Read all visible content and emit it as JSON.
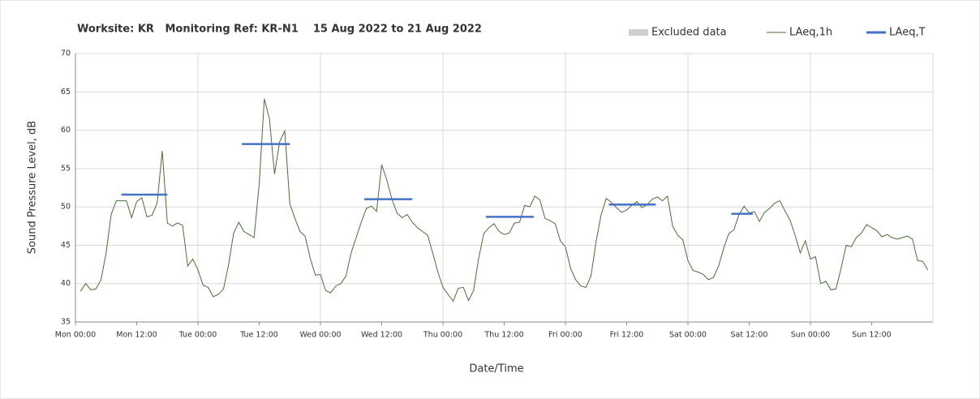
{
  "chart_data": {
    "type": "line",
    "title": "Worksite: KR   Monitoring Ref: KR-N1    15 Aug 2022 to 21 Aug 2022",
    "xlabel": "Date/Time",
    "ylabel": "Sound Pressure Level, dB",
    "xlim": [
      0,
      168
    ],
    "ylim": [
      35,
      70
    ],
    "yticks": [
      35,
      40,
      45,
      50,
      55,
      60,
      65,
      70
    ],
    "xticks": [
      {
        "value": 0,
        "label": "Mon 00:00"
      },
      {
        "value": 12,
        "label": "Mon 12:00"
      },
      {
        "value": 24,
        "label": "Tue 00:00"
      },
      {
        "value": 36,
        "label": "Tue 12:00"
      },
      {
        "value": 48,
        "label": "Wed 00:00"
      },
      {
        "value": 60,
        "label": "Wed 12:00"
      },
      {
        "value": 72,
        "label": "Thu 00:00"
      },
      {
        "value": 84,
        "label": "Thu 12:00"
      },
      {
        "value": 96,
        "label": "Fri 00:00"
      },
      {
        "value": 108,
        "label": "Fri 12:00"
      },
      {
        "value": 120,
        "label": "Sat 00:00"
      },
      {
        "value": 132,
        "label": "Sat 12:00"
      },
      {
        "value": 144,
        "label": "Sun 00:00"
      },
      {
        "value": 156,
        "label": "Sun 12:00"
      }
    ],
    "grid": true,
    "legend": [
      {
        "name": "Excluded data",
        "color": "#d0d0d0",
        "kind": "area"
      },
      {
        "name": "LAeq,1h",
        "color": "#4e6b3a",
        "kind": "line"
      },
      {
        "name": "LAeq,T",
        "color": "#4472c4",
        "kind": "segment"
      }
    ],
    "series": [
      {
        "name": "LAeq,1h",
        "color": "#4e6b3a",
        "x": [
          1,
          2,
          3,
          4,
          5,
          6,
          7,
          8,
          9,
          10,
          11,
          12,
          13,
          14,
          15,
          16,
          17,
          18,
          19,
          20,
          21,
          22,
          23,
          24,
          25,
          26,
          27,
          28,
          29,
          30,
          31,
          32,
          33,
          34,
          35,
          36,
          37,
          38,
          39,
          40,
          41,
          42,
          43,
          44,
          45,
          46,
          47,
          48,
          49,
          50,
          51,
          52,
          53,
          54,
          55,
          56,
          57,
          58,
          59,
          60,
          61,
          62,
          63,
          64,
          65,
          66,
          67,
          68,
          69,
          70,
          71,
          72,
          73,
          74,
          75,
          76,
          77,
          78,
          79,
          80,
          81,
          82,
          83,
          84,
          85,
          86,
          87,
          88,
          89,
          90,
          91,
          92,
          93,
          94,
          95,
          96,
          97,
          98,
          99,
          100,
          101,
          102,
          103,
          104,
          105,
          106,
          107,
          108,
          109,
          110,
          111,
          112,
          113,
          114,
          115,
          116,
          117,
          118,
          119,
          120,
          121,
          122,
          123,
          124,
          125,
          126,
          127,
          128,
          129,
          130,
          131,
          132,
          133,
          134,
          135,
          136,
          137,
          138,
          139,
          140,
          141,
          142,
          143,
          144,
          145,
          146,
          147,
          148,
          149,
          150,
          151,
          152,
          153,
          154,
          155,
          156,
          157,
          158,
          159,
          160,
          161,
          162,
          163,
          164,
          165,
          166,
          167
        ],
        "values": [
          39,
          40,
          39.2,
          39.3,
          40.5,
          44,
          49,
          50.8,
          50.8,
          50.8,
          48.6,
          50.7,
          51.2,
          48.7,
          48.9,
          50.5,
          57.3,
          47.9,
          47.5,
          47.9,
          47.6,
          42.3,
          43.2,
          41.8,
          39.8,
          39.5,
          38.3,
          38.6,
          39.3,
          42.5,
          46.6,
          48,
          46.8,
          46.4,
          46,
          53,
          64.1,
          61.5,
          54.3,
          58.5,
          59.9,
          50.4,
          48.5,
          46.8,
          46.2,
          43.3,
          41.1,
          41.2,
          39.1,
          38.8,
          39.7,
          40,
          41,
          44,
          46,
          48,
          49.8,
          50.1,
          49.4,
          55.5,
          53.5,
          51,
          49.2,
          48.6,
          49,
          48,
          47.3,
          46.8,
          46.3,
          44,
          41.5,
          39.5,
          38.6,
          37.7,
          39.4,
          39.5,
          37.8,
          39.1,
          43.3,
          46.5,
          47.3,
          47.8,
          46.8,
          46.4,
          46.6,
          47.9,
          48,
          50.2,
          50,
          51.4,
          50.9,
          48.5,
          48.2,
          47.8,
          45.6,
          44.8,
          42,
          40.5,
          39.7,
          39.5,
          41,
          45.5,
          49,
          51.1,
          50.6,
          49.9,
          49.3,
          49.6,
          50.2,
          50.7,
          49.9,
          50.3,
          51,
          51.3,
          50.8,
          51.4,
          47.5,
          46.3,
          45.7,
          43,
          41.7,
          41.5,
          41.2,
          40.5,
          40.8,
          42.3,
          44.6,
          46.5,
          47,
          49,
          50.1,
          49.2,
          49.4,
          48.1,
          49.3,
          49.8,
          50.5,
          50.8,
          49.5,
          48.3,
          46.3,
          44,
          45.6,
          43.2,
          43.5,
          40,
          40.3,
          39.2,
          39.3,
          42,
          45,
          44.8,
          46,
          46.6,
          47.7,
          47.3,
          46.9,
          46.1,
          46.4,
          46,
          45.8,
          46,
          46.2,
          45.8,
          43,
          42.9,
          41.8
        ]
      },
      {
        "name": "LAeq,T",
        "color": "#4472c4",
        "kind": "segments",
        "x_start": [
          9,
          32.6,
          56.6,
          80.4,
          104.5,
          128.5
        ],
        "x_end": [
          18,
          42,
          66,
          89.8,
          113.7,
          132.7
        ],
        "values": [
          51.6,
          58.2,
          51,
          48.7,
          50.3,
          49.1
        ]
      }
    ]
  }
}
